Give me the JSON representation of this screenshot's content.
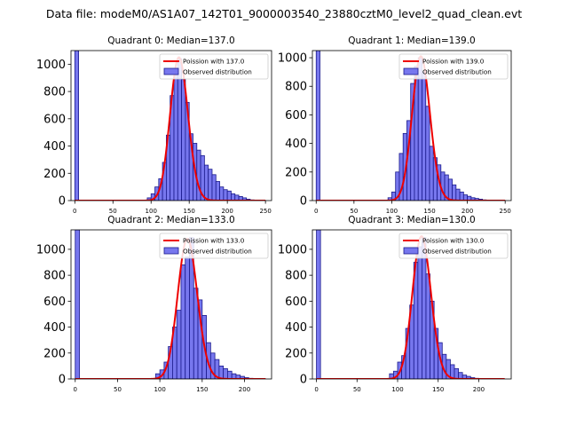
{
  "figure_title": "Data file: modeM0/AS1A07_142T01_9000003540_23880cztM0_level2_quad_clean.evt",
  "colors": {
    "bar_fill": "#7777ee",
    "bar_edge": "#1a1a8c",
    "curve": "#ee0000"
  },
  "chart_data": [
    {
      "type": "bar",
      "title": "Quadrant 0: Median=137.0",
      "legend": {
        "position": "top-right",
        "line_label": "Poission with 137.0",
        "bar_label": "Observed distribution"
      },
      "xlim": [
        -5,
        258
      ],
      "ylim": [
        0,
        1100
      ],
      "xticks": [
        0,
        50,
        100,
        150,
        200,
        250
      ],
      "yticks": [
        0,
        200,
        400,
        600,
        800,
        1000
      ],
      "bin_width": 5,
      "bins": [
        [
          0,
          1100
        ],
        [
          95,
          20
        ],
        [
          100,
          50
        ],
        [
          105,
          100
        ],
        [
          110,
          160
        ],
        [
          115,
          280
        ],
        [
          120,
          480
        ],
        [
          125,
          770
        ],
        [
          130,
          920
        ],
        [
          135,
          1040
        ],
        [
          140,
          890
        ],
        [
          145,
          720
        ],
        [
          150,
          490
        ],
        [
          155,
          420
        ],
        [
          160,
          370
        ],
        [
          165,
          330
        ],
        [
          170,
          260
        ],
        [
          175,
          230
        ],
        [
          180,
          190
        ],
        [
          185,
          140
        ],
        [
          190,
          100
        ],
        [
          195,
          80
        ],
        [
          200,
          70
        ],
        [
          205,
          50
        ],
        [
          210,
          40
        ],
        [
          215,
          30
        ],
        [
          220,
          20
        ],
        [
          225,
          10
        ],
        [
          230,
          5
        ]
      ],
      "poisson": {
        "lambda": 137.0,
        "x_range": [
          0,
          250
        ],
        "peak_height": 1050
      }
    },
    {
      "type": "bar",
      "title": "Quadrant 1: Median=139.0",
      "legend": {
        "position": "top-right",
        "line_label": "Poission with 139.0",
        "bar_label": "Observed distribution"
      },
      "xlim": [
        -5,
        258
      ],
      "ylim": [
        0,
        1050
      ],
      "xticks": [
        0,
        50,
        100,
        150,
        200,
        250
      ],
      "yticks": [
        0,
        200,
        400,
        600,
        800,
        1000
      ],
      "bin_width": 5,
      "bins": [
        [
          0,
          1050
        ],
        [
          95,
          20
        ],
        [
          100,
          60
        ],
        [
          105,
          200
        ],
        [
          110,
          330
        ],
        [
          115,
          470
        ],
        [
          120,
          560
        ],
        [
          125,
          820
        ],
        [
          130,
          940
        ],
        [
          135,
          1000
        ],
        [
          140,
          900
        ],
        [
          145,
          660
        ],
        [
          150,
          380
        ],
        [
          155,
          300
        ],
        [
          160,
          250
        ],
        [
          165,
          200
        ],
        [
          170,
          180
        ],
        [
          175,
          150
        ],
        [
          180,
          110
        ],
        [
          185,
          80
        ],
        [
          190,
          60
        ],
        [
          195,
          40
        ],
        [
          200,
          30
        ],
        [
          205,
          20
        ],
        [
          210,
          15
        ],
        [
          215,
          10
        ],
        [
          220,
          5
        ]
      ],
      "poisson": {
        "lambda": 139.0,
        "x_range": [
          0,
          250
        ],
        "peak_height": 1010
      }
    },
    {
      "type": "bar",
      "title": "Quadrant 2: Median=133.0",
      "legend": {
        "position": "top-right",
        "line_label": "Poission with 133.0",
        "bar_label": "Observed distribution"
      },
      "xlim": [
        -5,
        232
      ],
      "ylim": [
        0,
        1150
      ],
      "xticks": [
        0,
        50,
        100,
        150,
        200
      ],
      "yticks": [
        0,
        200,
        400,
        600,
        800,
        1000
      ],
      "bin_width": 5,
      "bins": [
        [
          0,
          1150
        ],
        [
          95,
          40
        ],
        [
          100,
          70
        ],
        [
          105,
          130
        ],
        [
          110,
          250
        ],
        [
          115,
          400
        ],
        [
          120,
          530
        ],
        [
          125,
          880
        ],
        [
          130,
          940
        ],
        [
          135,
          1090
        ],
        [
          140,
          700
        ],
        [
          145,
          610
        ],
        [
          150,
          490
        ],
        [
          155,
          280
        ],
        [
          160,
          200
        ],
        [
          165,
          150
        ],
        [
          170,
          100
        ],
        [
          175,
          80
        ],
        [
          180,
          60
        ],
        [
          185,
          40
        ],
        [
          190,
          30
        ],
        [
          195,
          20
        ],
        [
          200,
          10
        ],
        [
          205,
          5
        ]
      ],
      "poisson": {
        "lambda": 133.0,
        "x_range": [
          0,
          225
        ],
        "peak_height": 1080
      }
    },
    {
      "type": "bar",
      "title": "Quadrant 3: Median=130.0",
      "legend": {
        "position": "top-right",
        "line_label": "Poission with 130.0",
        "bar_label": "Observed distribution"
      },
      "xlim": [
        -5,
        240
      ],
      "ylim": [
        0,
        1150
      ],
      "xticks": [
        0,
        50,
        100,
        150,
        200
      ],
      "yticks": [
        0,
        200,
        400,
        600,
        800,
        1000
      ],
      "bin_width": 5,
      "bins": [
        [
          0,
          1150
        ],
        [
          90,
          40
        ],
        [
          95,
          60
        ],
        [
          100,
          130
        ],
        [
          105,
          180
        ],
        [
          110,
          390
        ],
        [
          115,
          570
        ],
        [
          120,
          900
        ],
        [
          125,
          1020
        ],
        [
          130,
          1090
        ],
        [
          135,
          810
        ],
        [
          140,
          600
        ],
        [
          145,
          390
        ],
        [
          150,
          280
        ],
        [
          155,
          190
        ],
        [
          160,
          150
        ],
        [
          165,
          110
        ],
        [
          170,
          80
        ],
        [
          175,
          50
        ],
        [
          180,
          30
        ],
        [
          185,
          20
        ],
        [
          190,
          10
        ],
        [
          195,
          5
        ]
      ],
      "poisson": {
        "lambda": 130.0,
        "x_range": [
          0,
          232
        ],
        "peak_height": 1100
      }
    }
  ]
}
